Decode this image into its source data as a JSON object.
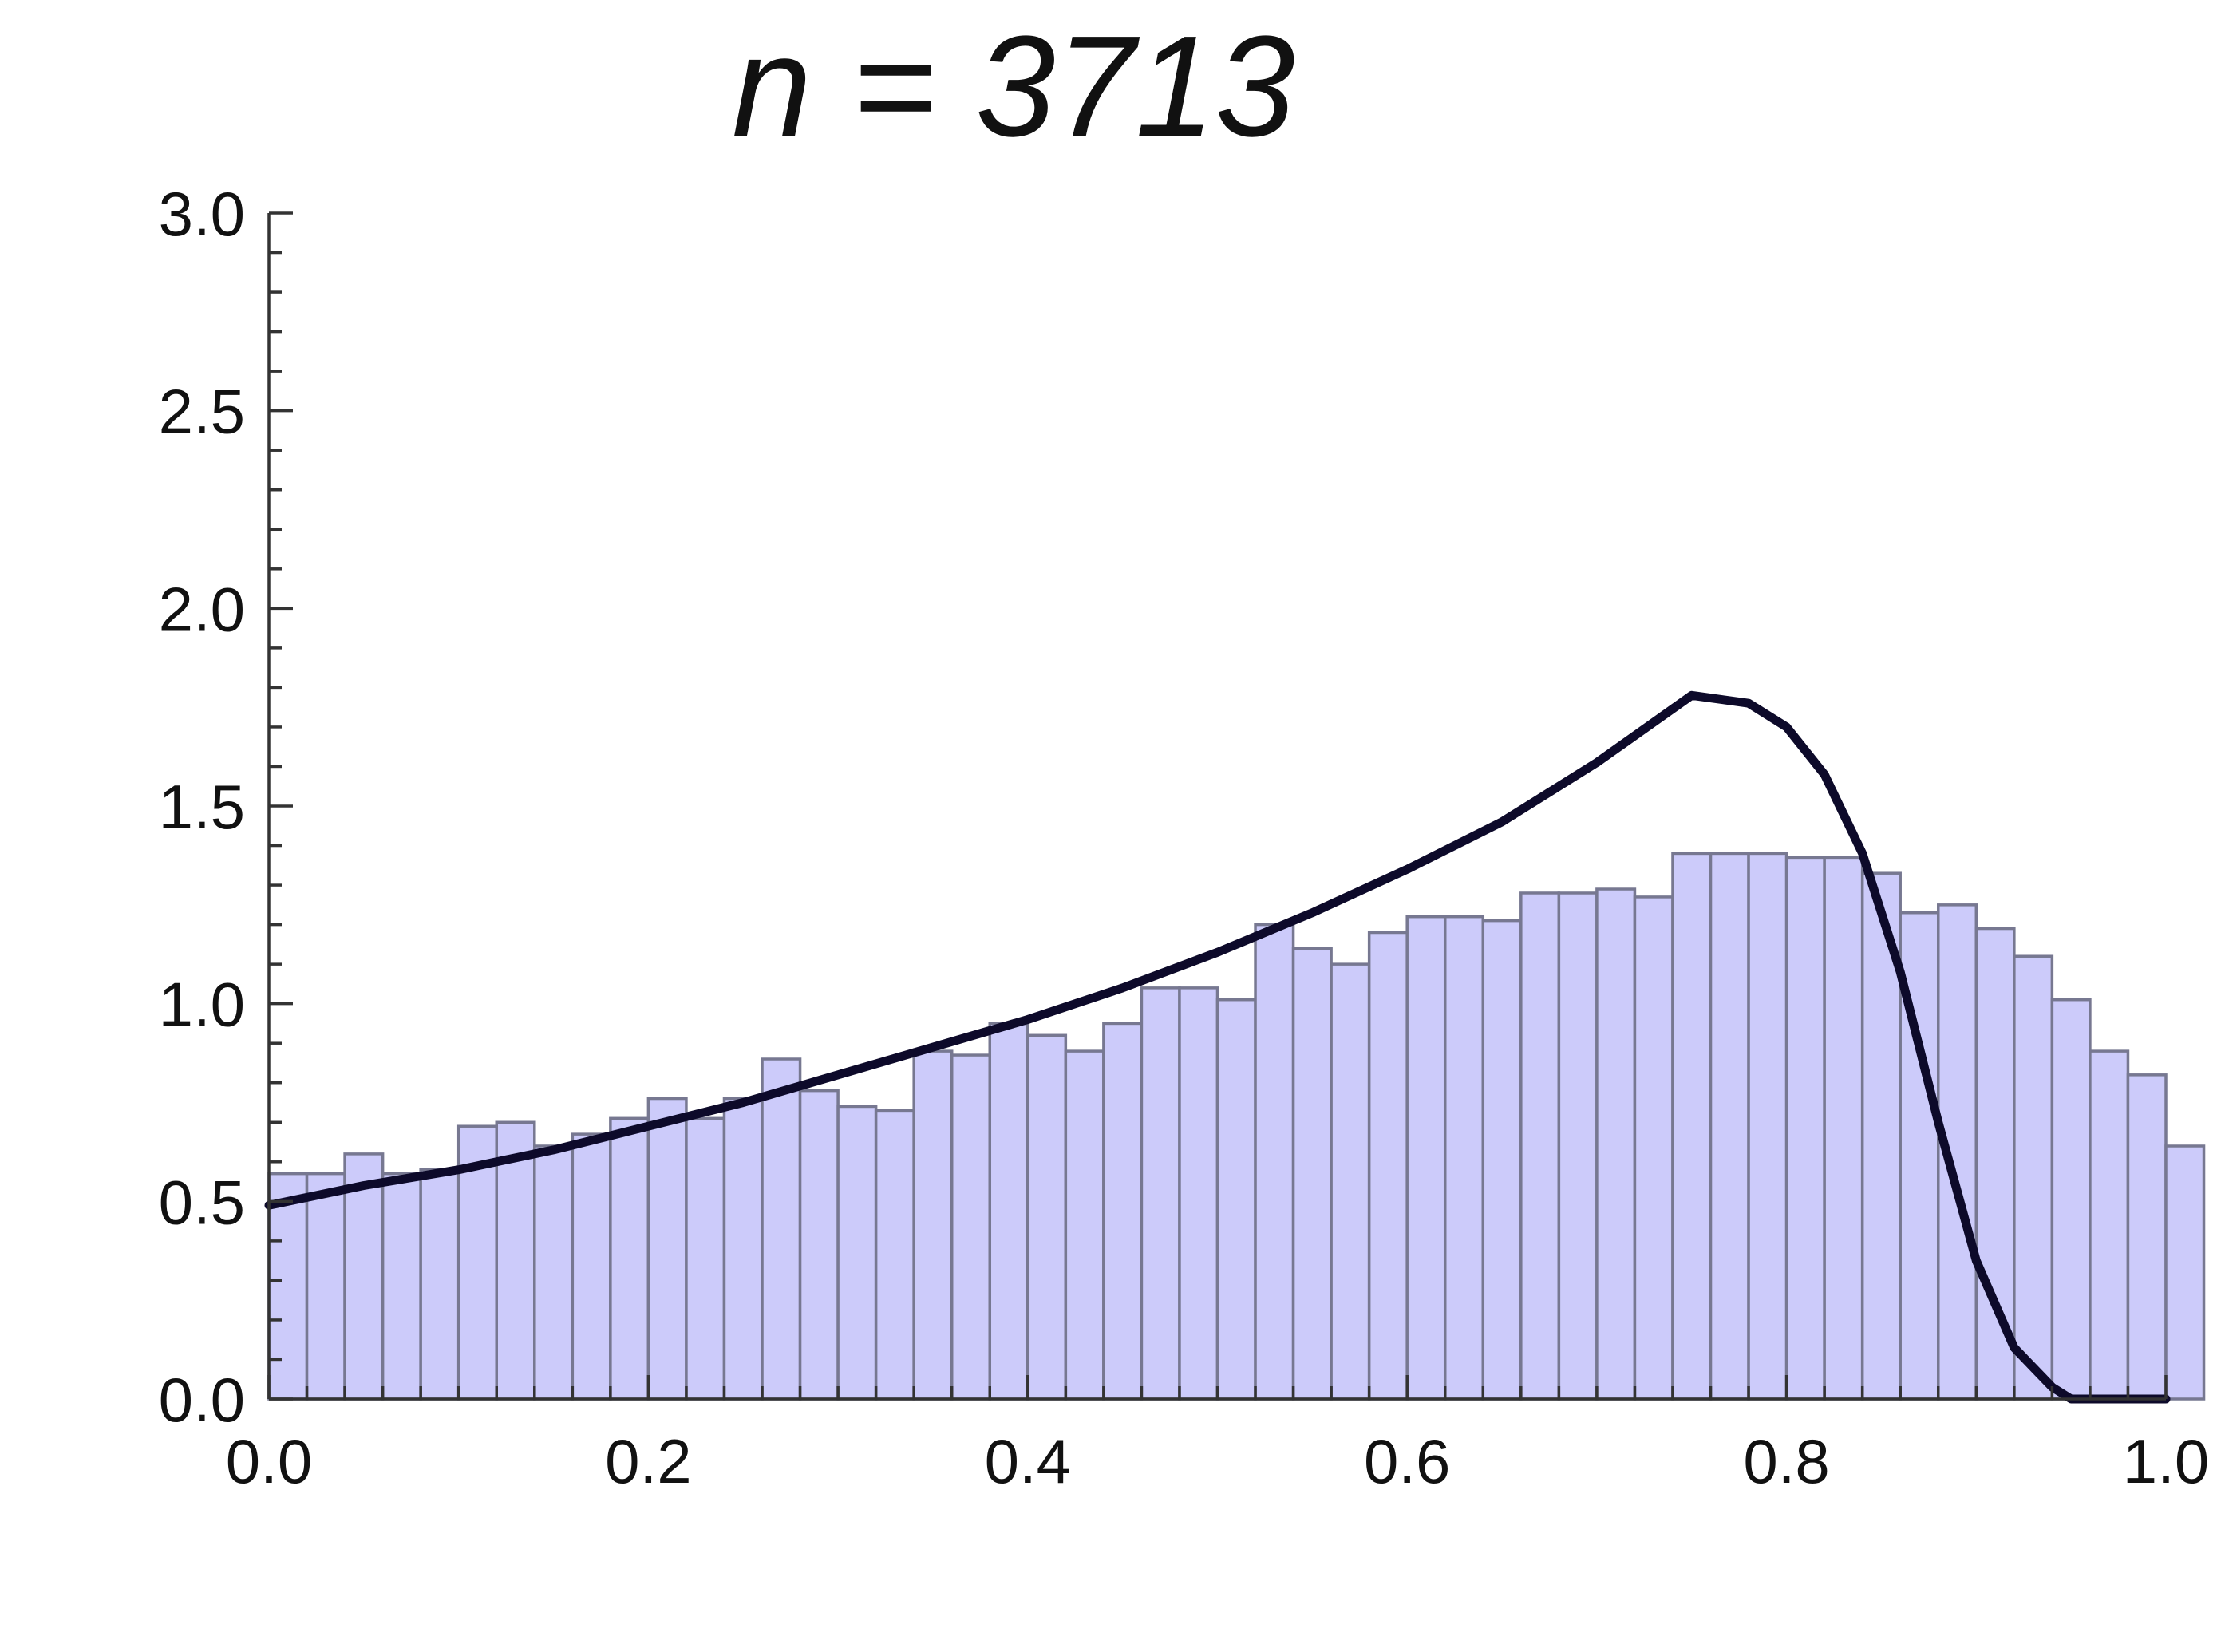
{
  "chart_data": {
    "type": "bar",
    "title": "n = 3713",
    "xlabel": "",
    "ylabel": "",
    "xlim": [
      0.0,
      1.0
    ],
    "ylim": [
      0.0,
      3.0
    ],
    "x_ticks": [
      "0.0",
      "0.2",
      "0.4",
      "0.6",
      "0.8",
      "1.0"
    ],
    "y_ticks": [
      "0.0",
      "0.5",
      "1.0",
      "1.5",
      "2.0",
      "2.5",
      "3.0"
    ],
    "bin_width": 0.02,
    "bin_start": 0.0,
    "bar_color": "#cccbfa",
    "bar_edge_color": "#777891",
    "values": [
      0.57,
      0.57,
      0.62,
      0.57,
      0.58,
      0.69,
      0.7,
      0.64,
      0.67,
      0.71,
      0.76,
      0.71,
      0.76,
      0.86,
      0.78,
      0.74,
      0.73,
      0.88,
      0.87,
      0.95,
      0.92,
      0.88,
      0.95,
      1.04,
      1.04,
      1.01,
      1.2,
      1.14,
      1.1,
      1.18,
      1.22,
      1.22,
      1.21,
      1.28,
      1.28,
      1.29,
      1.27,
      1.38,
      1.38,
      1.38,
      1.37,
      1.37,
      1.33,
      1.23,
      1.25,
      1.19,
      1.12,
      1.01,
      0.88,
      0.82,
      0.64
    ],
    "series": [
      {
        "type": "line",
        "color": "#0d0a2a",
        "x": [
          0.0,
          0.05,
          0.1,
          0.15,
          0.2,
          0.25,
          0.3,
          0.35,
          0.4,
          0.45,
          0.5,
          0.55,
          0.6,
          0.65,
          0.7,
          0.75,
          0.78,
          0.8,
          0.82,
          0.84,
          0.86,
          0.88,
          0.9,
          0.92,
          0.94,
          0.95,
          1.0
        ],
        "y": [
          0.49,
          0.54,
          0.58,
          0.63,
          0.69,
          0.75,
          0.82,
          0.89,
          0.96,
          1.04,
          1.13,
          1.23,
          1.34,
          1.46,
          1.61,
          1.78,
          1.76,
          1.7,
          1.58,
          1.38,
          1.08,
          0.7,
          0.35,
          0.13,
          0.03,
          0.0,
          0.0
        ]
      }
    ]
  }
}
